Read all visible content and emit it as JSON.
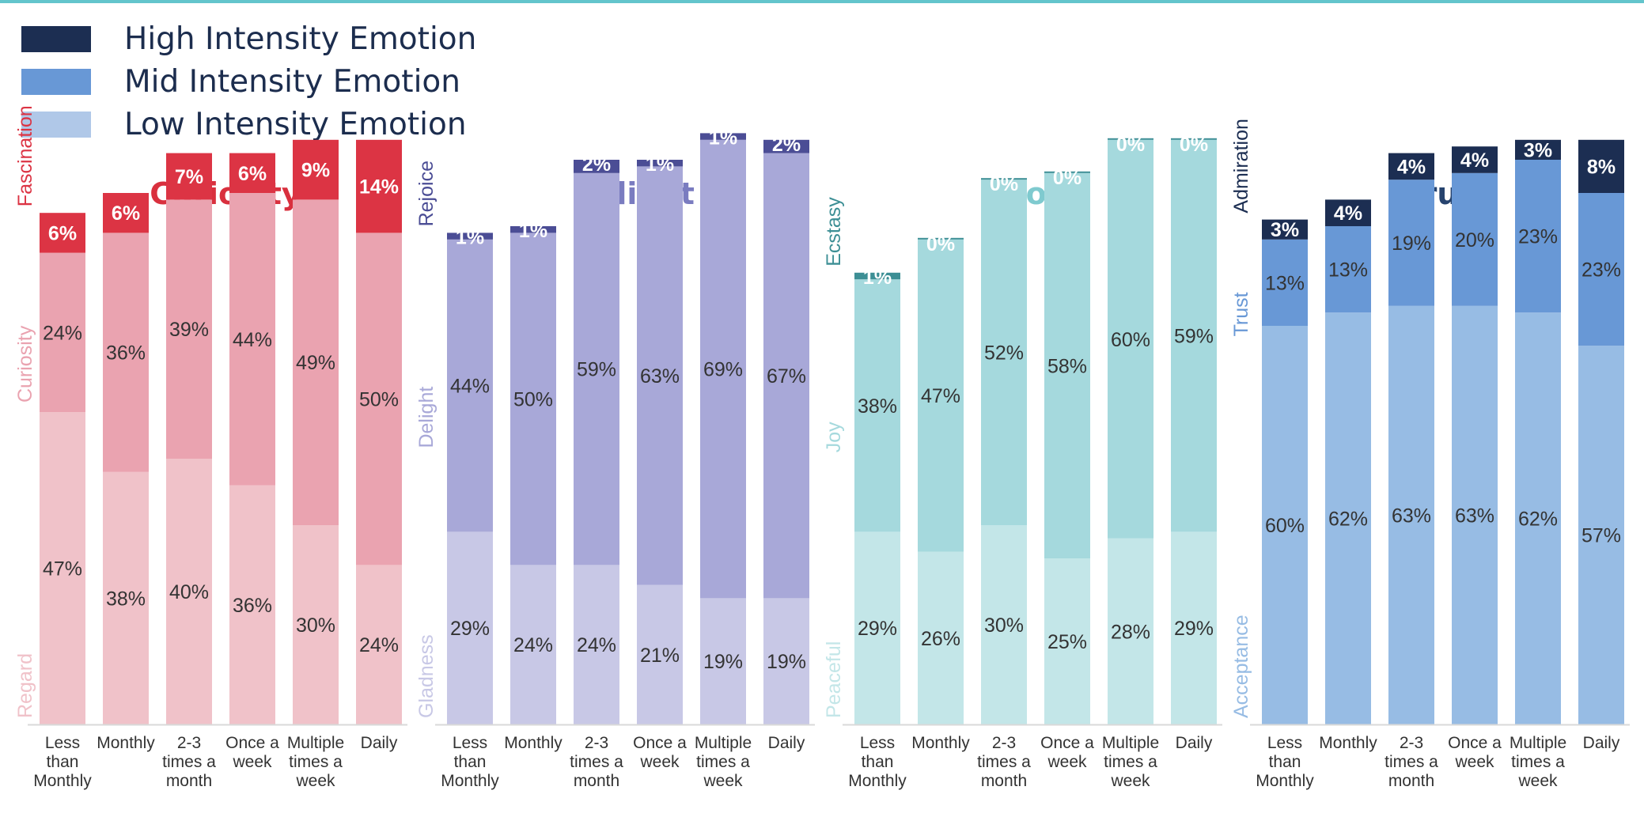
{
  "legend": {
    "items": [
      {
        "label": "High Intensity Emotion",
        "color": "#1c2e52"
      },
      {
        "label": "Mid Intensity Emotion",
        "color": "#6898d6"
      },
      {
        "label": "Low Intensity Emotion",
        "color": "#b0c8e8"
      }
    ]
  },
  "chart_data": [
    {
      "type": "bar",
      "stacked": true,
      "title": "Curiosity",
      "title_color": "#d9303e",
      "categories": [
        "Less than Monthly",
        "Monthly",
        "2-3 times a month",
        "Once a week",
        "Multiple times a week",
        "Daily"
      ],
      "series": [
        {
          "name": "Regard",
          "level": "low",
          "color": "#f0c2c9",
          "label_color": "#f0c2c9",
          "values": [
            47,
            38,
            40,
            36,
            30,
            24
          ]
        },
        {
          "name": "Curiosity",
          "level": "mid",
          "color": "#eaa3b0",
          "label_color": "#eaa3b0",
          "values": [
            24,
            36,
            39,
            44,
            49,
            50
          ]
        },
        {
          "name": "Fascination",
          "level": "high",
          "color": "#dc3444",
          "label_color": "#dc3444",
          "values": [
            6,
            6,
            7,
            6,
            9,
            14
          ]
        }
      ],
      "data_labels": [
        [
          "47%",
          "38%",
          "40%",
          "36%",
          "30%",
          "24%"
        ],
        [
          "24%",
          "36%",
          "39%",
          "44%",
          "49%",
          "50%"
        ],
        [
          "6%",
          "6%",
          "7%",
          "6%",
          "9%",
          "14%"
        ]
      ],
      "ylim": [
        0,
        100
      ]
    },
    {
      "type": "bar",
      "stacked": true,
      "title": "Delight",
      "title_color": "#7a7cc0",
      "categories": [
        "Less than Monthly",
        "Monthly",
        "2-3 times a month",
        "Once a week",
        "Multiple times a week",
        "Daily"
      ],
      "series": [
        {
          "name": "Gladness",
          "level": "low",
          "color": "#c8c8e6",
          "label_color": "#c8c8e6",
          "values": [
            29,
            24,
            24,
            21,
            19,
            19
          ]
        },
        {
          "name": "Delight",
          "level": "mid",
          "color": "#a8a8d8",
          "label_color": "#a8a8d8",
          "values": [
            44,
            50,
            59,
            63,
            69,
            67
          ]
        },
        {
          "name": "Rejoice",
          "level": "high",
          "color": "#4b4d95",
          "label_color": "#4b4d95",
          "values": [
            1,
            1,
            2,
            1,
            1,
            2
          ]
        }
      ],
      "data_labels": [
        [
          "29%",
          "24%",
          "24%",
          "21%",
          "19%",
          "19%"
        ],
        [
          "44%",
          "50%",
          "59%",
          "63%",
          "69%",
          "67%"
        ],
        [
          "1%",
          "1%",
          "2%",
          "1%",
          "1%",
          "2%"
        ]
      ],
      "ylim": [
        0,
        100
      ]
    },
    {
      "type": "bar",
      "stacked": true,
      "title": "Joy",
      "title_color": "#7fcacf",
      "categories": [
        "Less than Monthly",
        "Monthly",
        "2-3 times a month",
        "Once a week",
        "Multiple times a week",
        "Daily"
      ],
      "series": [
        {
          "name": "Peaceful",
          "level": "low",
          "color": "#c3e6e8",
          "label_color": "#c3e6e8",
          "values": [
            29,
            26,
            30,
            25,
            28,
            29
          ]
        },
        {
          "name": "Joy",
          "level": "mid",
          "color": "#a5d9dd",
          "label_color": "#a5d9dd",
          "values": [
            38,
            47,
            52,
            58,
            60,
            59
          ]
        },
        {
          "name": "Ecstasy",
          "level": "high",
          "color": "#3d8f95",
          "label_color": "#3d8f95",
          "values": [
            1,
            0,
            0,
            0,
            0,
            0
          ]
        }
      ],
      "data_labels": [
        [
          "29%",
          "26%",
          "30%",
          "25%",
          "28%",
          "29%"
        ],
        [
          "38%",
          "47%",
          "52%",
          "58%",
          "60%",
          "59%"
        ],
        [
          "1%",
          "0%",
          "0%",
          "0%",
          "0%",
          "0%"
        ]
      ],
      "ylim": [
        0,
        100
      ]
    },
    {
      "type": "bar",
      "stacked": true,
      "title": "Trust",
      "title_color": "#26436e",
      "categories": [
        "Less than Monthly",
        "Monthly",
        "2-3 times a month",
        "Once a week",
        "Multiple times a week",
        "Daily"
      ],
      "series": [
        {
          "name": "Acceptance",
          "level": "low",
          "color": "#97bce4",
          "label_color": "#97bce4",
          "values": [
            60,
            62,
            63,
            63,
            62,
            57
          ]
        },
        {
          "name": "Trust",
          "level": "mid",
          "color": "#6898d6",
          "label_color": "#6898d6",
          "values": [
            13,
            13,
            19,
            20,
            23,
            23
          ]
        },
        {
          "name": "Admiration",
          "level": "high",
          "color": "#1c2e52",
          "label_color": "#1c2e52",
          "values": [
            3,
            4,
            4,
            4,
            3,
            8
          ]
        }
      ],
      "data_labels": [
        [
          "60%",
          "62%",
          "63%",
          "63%",
          "62%",
          "57%"
        ],
        [
          "13%",
          "13%",
          "19%",
          "20%",
          "23%",
          "23%"
        ],
        [
          "3%",
          "4%",
          "4%",
          "4%",
          "3%",
          "8%"
        ]
      ],
      "ylim": [
        0,
        100
      ]
    }
  ]
}
